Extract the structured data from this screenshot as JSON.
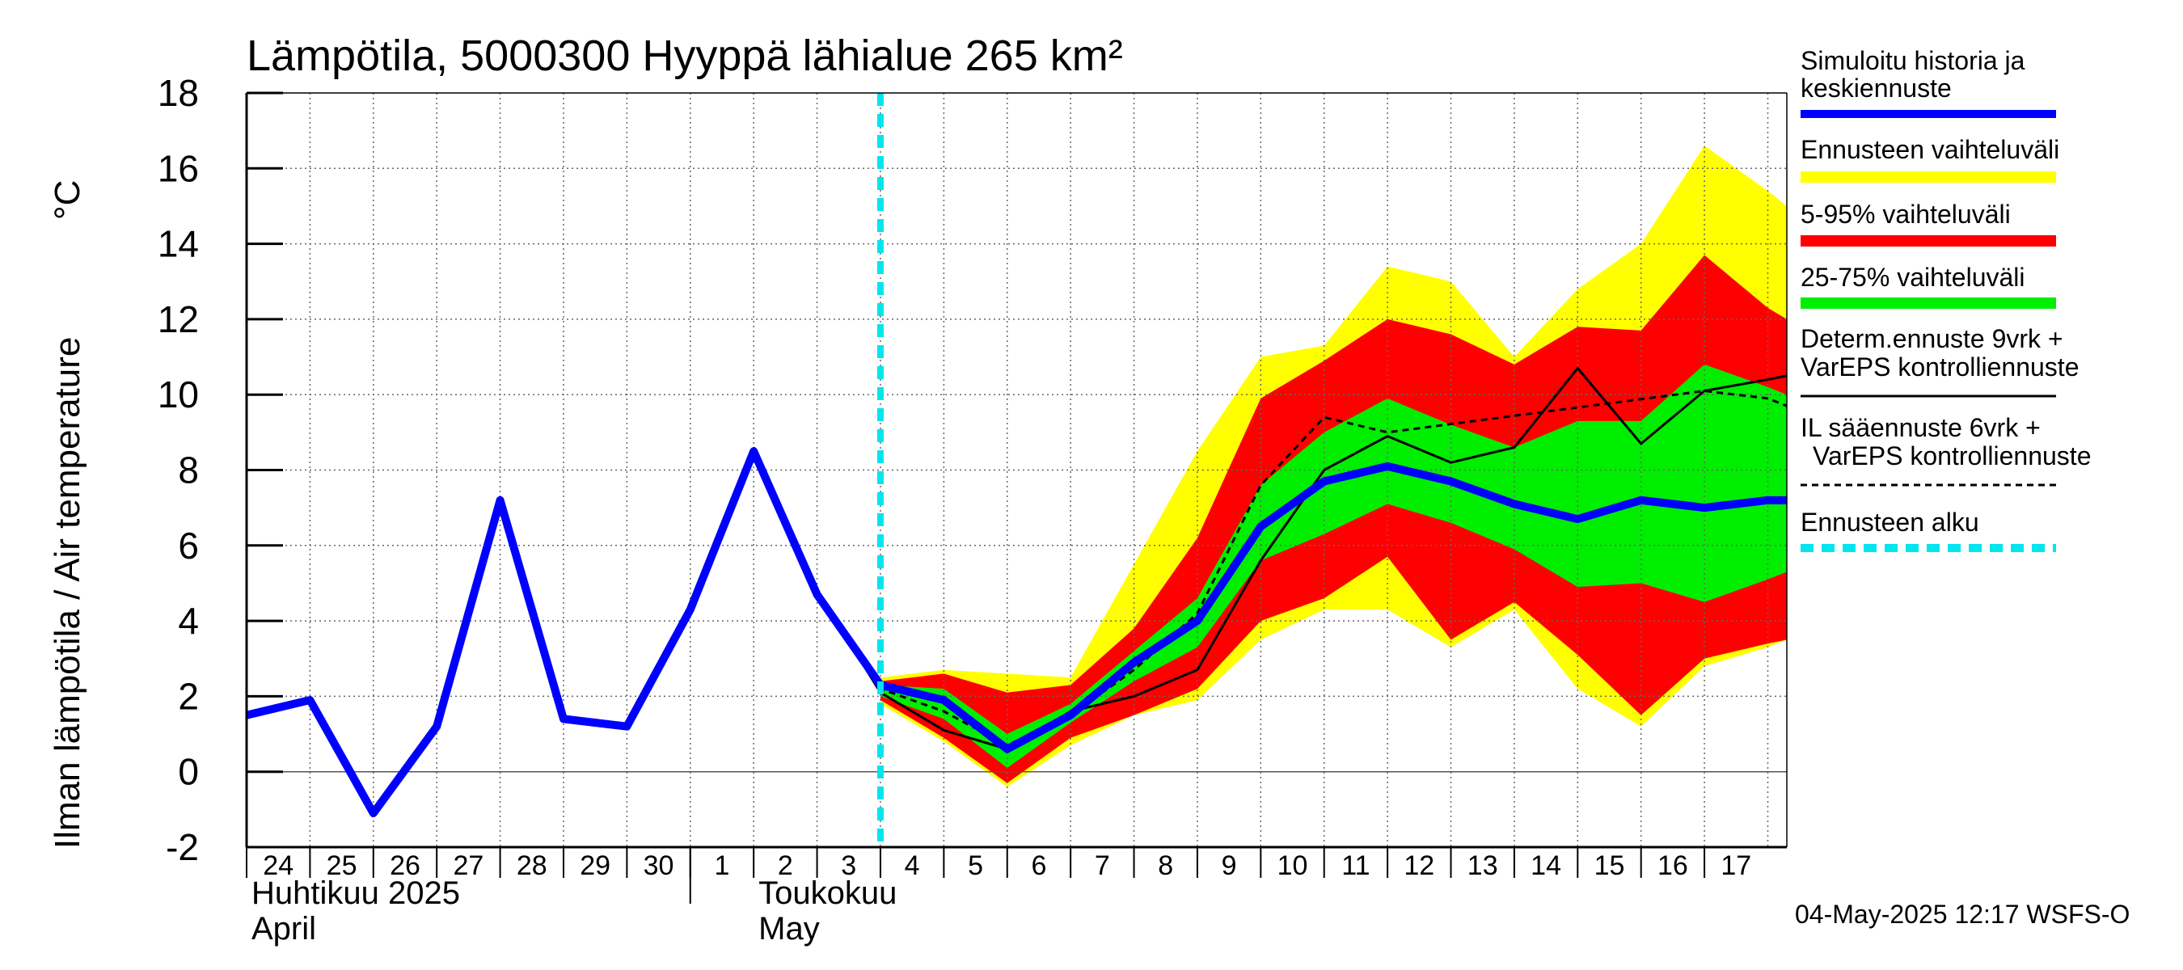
{
  "chart_data": {
    "type": "area",
    "title": "Lämpötila, 5000300 Hyyppä lähialue 265 km²",
    "ylabel": "Ilman lämpötila / Air temperature",
    "yunit": "°C",
    "ylim": [
      -2,
      18
    ],
    "yticks": [
      "18",
      "16",
      "14",
      "12",
      "10",
      "8",
      "6",
      "4",
      "2",
      "0",
      "-2"
    ],
    "xlim": [
      0,
      24.3
    ],
    "day_labels": [
      "24",
      "25",
      "26",
      "27",
      "28",
      "29",
      "30",
      "1",
      "2",
      "3",
      "4",
      "5",
      "6",
      "7",
      "8",
      "9",
      "10",
      "11",
      "12",
      "13",
      "14",
      "15",
      "16",
      "17"
    ],
    "months": [
      {
        "fi": "Huhtikuu  2025",
        "en": "April"
      },
      {
        "fi": "Toukokuu",
        "en": "May"
      }
    ],
    "forecast_start": 10.0,
    "grid": true,
    "legend_position": "right",
    "series": [
      {
        "name": "Ennusteen vaihteluväli",
        "color": "#ffff00",
        "x": [
          10,
          11,
          12,
          13,
          14,
          15,
          16,
          17,
          18,
          19,
          20,
          21,
          22,
          23,
          24,
          24.3
        ],
        "upper": [
          2.5,
          2.7,
          2.6,
          2.5,
          5.5,
          8.5,
          11.0,
          11.3,
          13.4,
          13.0,
          11.0,
          12.8,
          14.0,
          16.6,
          15.4,
          15.0
        ],
        "lower": [
          1.8,
          0.8,
          -0.4,
          0.7,
          1.5,
          1.9,
          3.5,
          4.3,
          4.3,
          3.3,
          4.3,
          2.2,
          1.2,
          2.8,
          3.3,
          3.5
        ]
      },
      {
        "name": "5-95% vaihteluväli",
        "color": "#ff0000",
        "x": [
          10,
          11,
          12,
          13,
          14,
          15,
          16,
          17,
          18,
          19,
          20,
          21,
          22,
          23,
          24,
          24.3
        ],
        "upper": [
          2.4,
          2.6,
          2.1,
          2.3,
          3.8,
          6.2,
          9.9,
          10.9,
          12.0,
          11.6,
          10.8,
          11.8,
          11.7,
          13.7,
          12.3,
          12.0
        ],
        "lower": [
          1.9,
          0.9,
          -0.3,
          0.9,
          1.5,
          2.2,
          4.0,
          4.6,
          5.7,
          3.5,
          4.5,
          3.1,
          1.5,
          3.0,
          3.4,
          3.5
        ]
      },
      {
        "name": "25-75% vaihteluväli",
        "color": "#00ee00",
        "x": [
          10,
          11,
          12,
          13,
          14,
          15,
          16,
          17,
          18,
          19,
          20,
          21,
          22,
          23,
          24,
          24.3
        ],
        "upper": [
          2.3,
          2.2,
          1.0,
          1.8,
          3.2,
          4.6,
          7.6,
          9.0,
          9.9,
          9.2,
          8.6,
          9.3,
          9.3,
          10.8,
          10.2,
          10.0
        ],
        "lower": [
          2.0,
          1.4,
          0.1,
          1.3,
          2.4,
          3.3,
          5.6,
          6.3,
          7.1,
          6.6,
          5.9,
          4.9,
          5.0,
          4.5,
          5.1,
          5.3
        ]
      },
      {
        "name": "Simuloitu historia ja keskiennuste",
        "color": "#0000ff",
        "x": [
          0,
          1,
          2,
          3,
          4,
          5,
          6,
          7,
          8,
          9,
          10,
          11,
          12,
          13,
          14,
          15,
          16,
          17,
          18,
          19,
          20,
          21,
          22,
          23,
          24,
          24.3
        ],
        "y": [
          1.5,
          1.9,
          -1.1,
          1.2,
          7.2,
          1.4,
          1.2,
          4.3,
          8.5,
          4.7,
          2.3,
          1.9,
          0.6,
          1.5,
          2.9,
          4.0,
          6.5,
          7.7,
          8.1,
          7.7,
          7.1,
          6.7,
          7.2,
          7.0,
          7.2,
          7.2
        ]
      },
      {
        "name": "Determ.ennuste 9vrk + VarEPS kontrolliennuste",
        "color": "#000000",
        "x": [
          8,
          9,
          10,
          11,
          12,
          13,
          14,
          15,
          16,
          17,
          18,
          19,
          20,
          21,
          22,
          23,
          24,
          24.3
        ],
        "y": [
          8.6,
          4.8,
          2.1,
          1.1,
          0.6,
          1.6,
          2.0,
          2.7,
          5.6,
          8.0,
          8.9,
          8.2,
          8.6,
          10.7,
          8.7,
          10.1,
          10.4,
          10.5
        ]
      },
      {
        "name": "IL sääennuste 6vrk + VarEPS kontrolliennuste",
        "color": "#000000",
        "x": [
          8,
          9,
          10,
          11,
          12,
          13,
          14,
          15,
          16,
          17,
          18,
          23,
          24,
          24.3
        ],
        "y": [
          8.6,
          4.7,
          2.2,
          1.6,
          0.7,
          1.5,
          2.7,
          4.2,
          7.6,
          9.4,
          9.0,
          10.1,
          9.9,
          9.7
        ]
      }
    ]
  },
  "legend": {
    "sim_line1": "Simuloitu historia ja",
    "sim_line2": "keskiennuste",
    "range": "Ennusteen vaihteluväli",
    "p5_95": "5-95% vaihteluväli",
    "p25_75": "25-75% vaihteluväli",
    "determ_line1": "Determ.ennuste 9vrk +",
    "determ_line2": "VarEPS kontrolliennuste",
    "il_line1": "IL sääennuste 6vrk  +",
    "il_line2": "VarEPS kontrolliennuste",
    "start": "Ennusteen alku"
  },
  "colors": {
    "cyan": "#00e5ee",
    "blue": "#0000ff",
    "yellow": "#ffff00",
    "red": "#ff0000",
    "green": "#00ee00"
  },
  "timestamp": "04-May-2025 12:17 WSFS-O"
}
